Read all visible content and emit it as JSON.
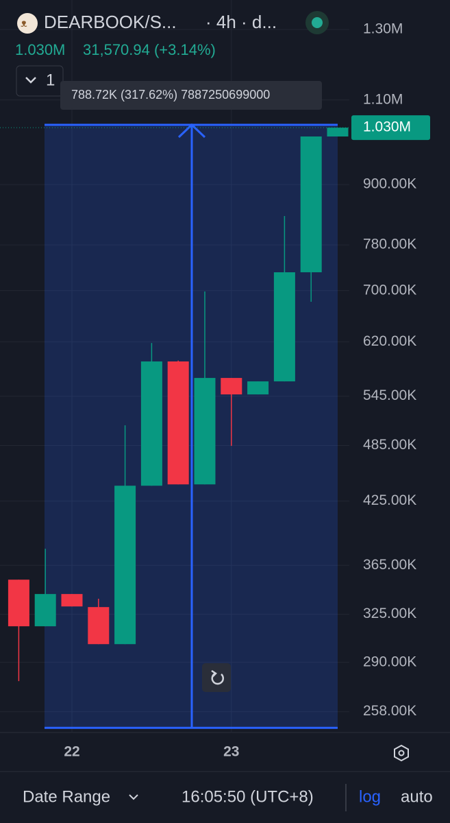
{
  "header": {
    "symbol": "DEARBOOK/S...",
    "interval": "· 4h · d...",
    "price": "1.030M",
    "change": "31,570.94 (+3.14%)",
    "button": "1"
  },
  "footer": {
    "range": "Date Range",
    "time": "16:05:50 (UTC+8)",
    "log": "log",
    "auto": "auto"
  },
  "chart_data": {
    "type": "candlestick",
    "categories": [
      null,
      null,
      "22",
      null,
      null,
      null,
      null,
      null,
      "23",
      null,
      null,
      null,
      null
    ],
    "open": [
      352800,
      315900,
      341000,
      330600,
      302800,
      440800,
      591800,
      442200,
      569100,
      547300,
      564500,
      731100,
      1008700
    ],
    "high": [
      352800,
      379600,
      341000,
      337200,
      508700,
      618300,
      593000,
      698600,
      569100,
      564500,
      835400,
      1008700,
      1030000
    ],
    "low": [
      277400,
      315900,
      331100,
      302800,
      302800,
      440800,
      442200,
      442200,
      484500,
      547300,
      564500,
      681700,
      1008700
    ],
    "close": [
      315900,
      341000,
      331100,
      302800,
      440800,
      591800,
      442200,
      569100,
      547300,
      564500,
      731100,
      1008700,
      1030000
    ],
    "up_color": "#089981",
    "down_color": "#f23645",
    "log_scale": true,
    "grid": true,
    "ylim": [
      245600,
      1394000
    ],
    "yticks": [
      {
        "value": 1300000,
        "label": "1.30M"
      },
      {
        "value": 1100000,
        "label": "1.10M"
      },
      {
        "value": 900000,
        "label": "900.00K"
      },
      {
        "value": 780000,
        "label": "780.00K"
      },
      {
        "value": 700000,
        "label": "700.00K"
      },
      {
        "value": 620000,
        "label": "620.00K"
      },
      {
        "value": 545000,
        "label": "545.00K"
      },
      {
        "value": 485000,
        "label": "485.00K"
      },
      {
        "value": 425000,
        "label": "425.00K"
      },
      {
        "value": 365000,
        "label": "365.00K"
      },
      {
        "value": 325000,
        "label": "325.00K"
      },
      {
        "value": 290000,
        "label": "290.00K"
      },
      {
        "value": 258000,
        "label": "258.00K"
      }
    ],
    "last_price": {
      "value": 1030000,
      "label": "1.030M"
    },
    "measure": {
      "from": 248300,
      "to": 1037000,
      "label": "788.72K (317.62%) 7887250699000",
      "color": "#2962ff"
    }
  }
}
